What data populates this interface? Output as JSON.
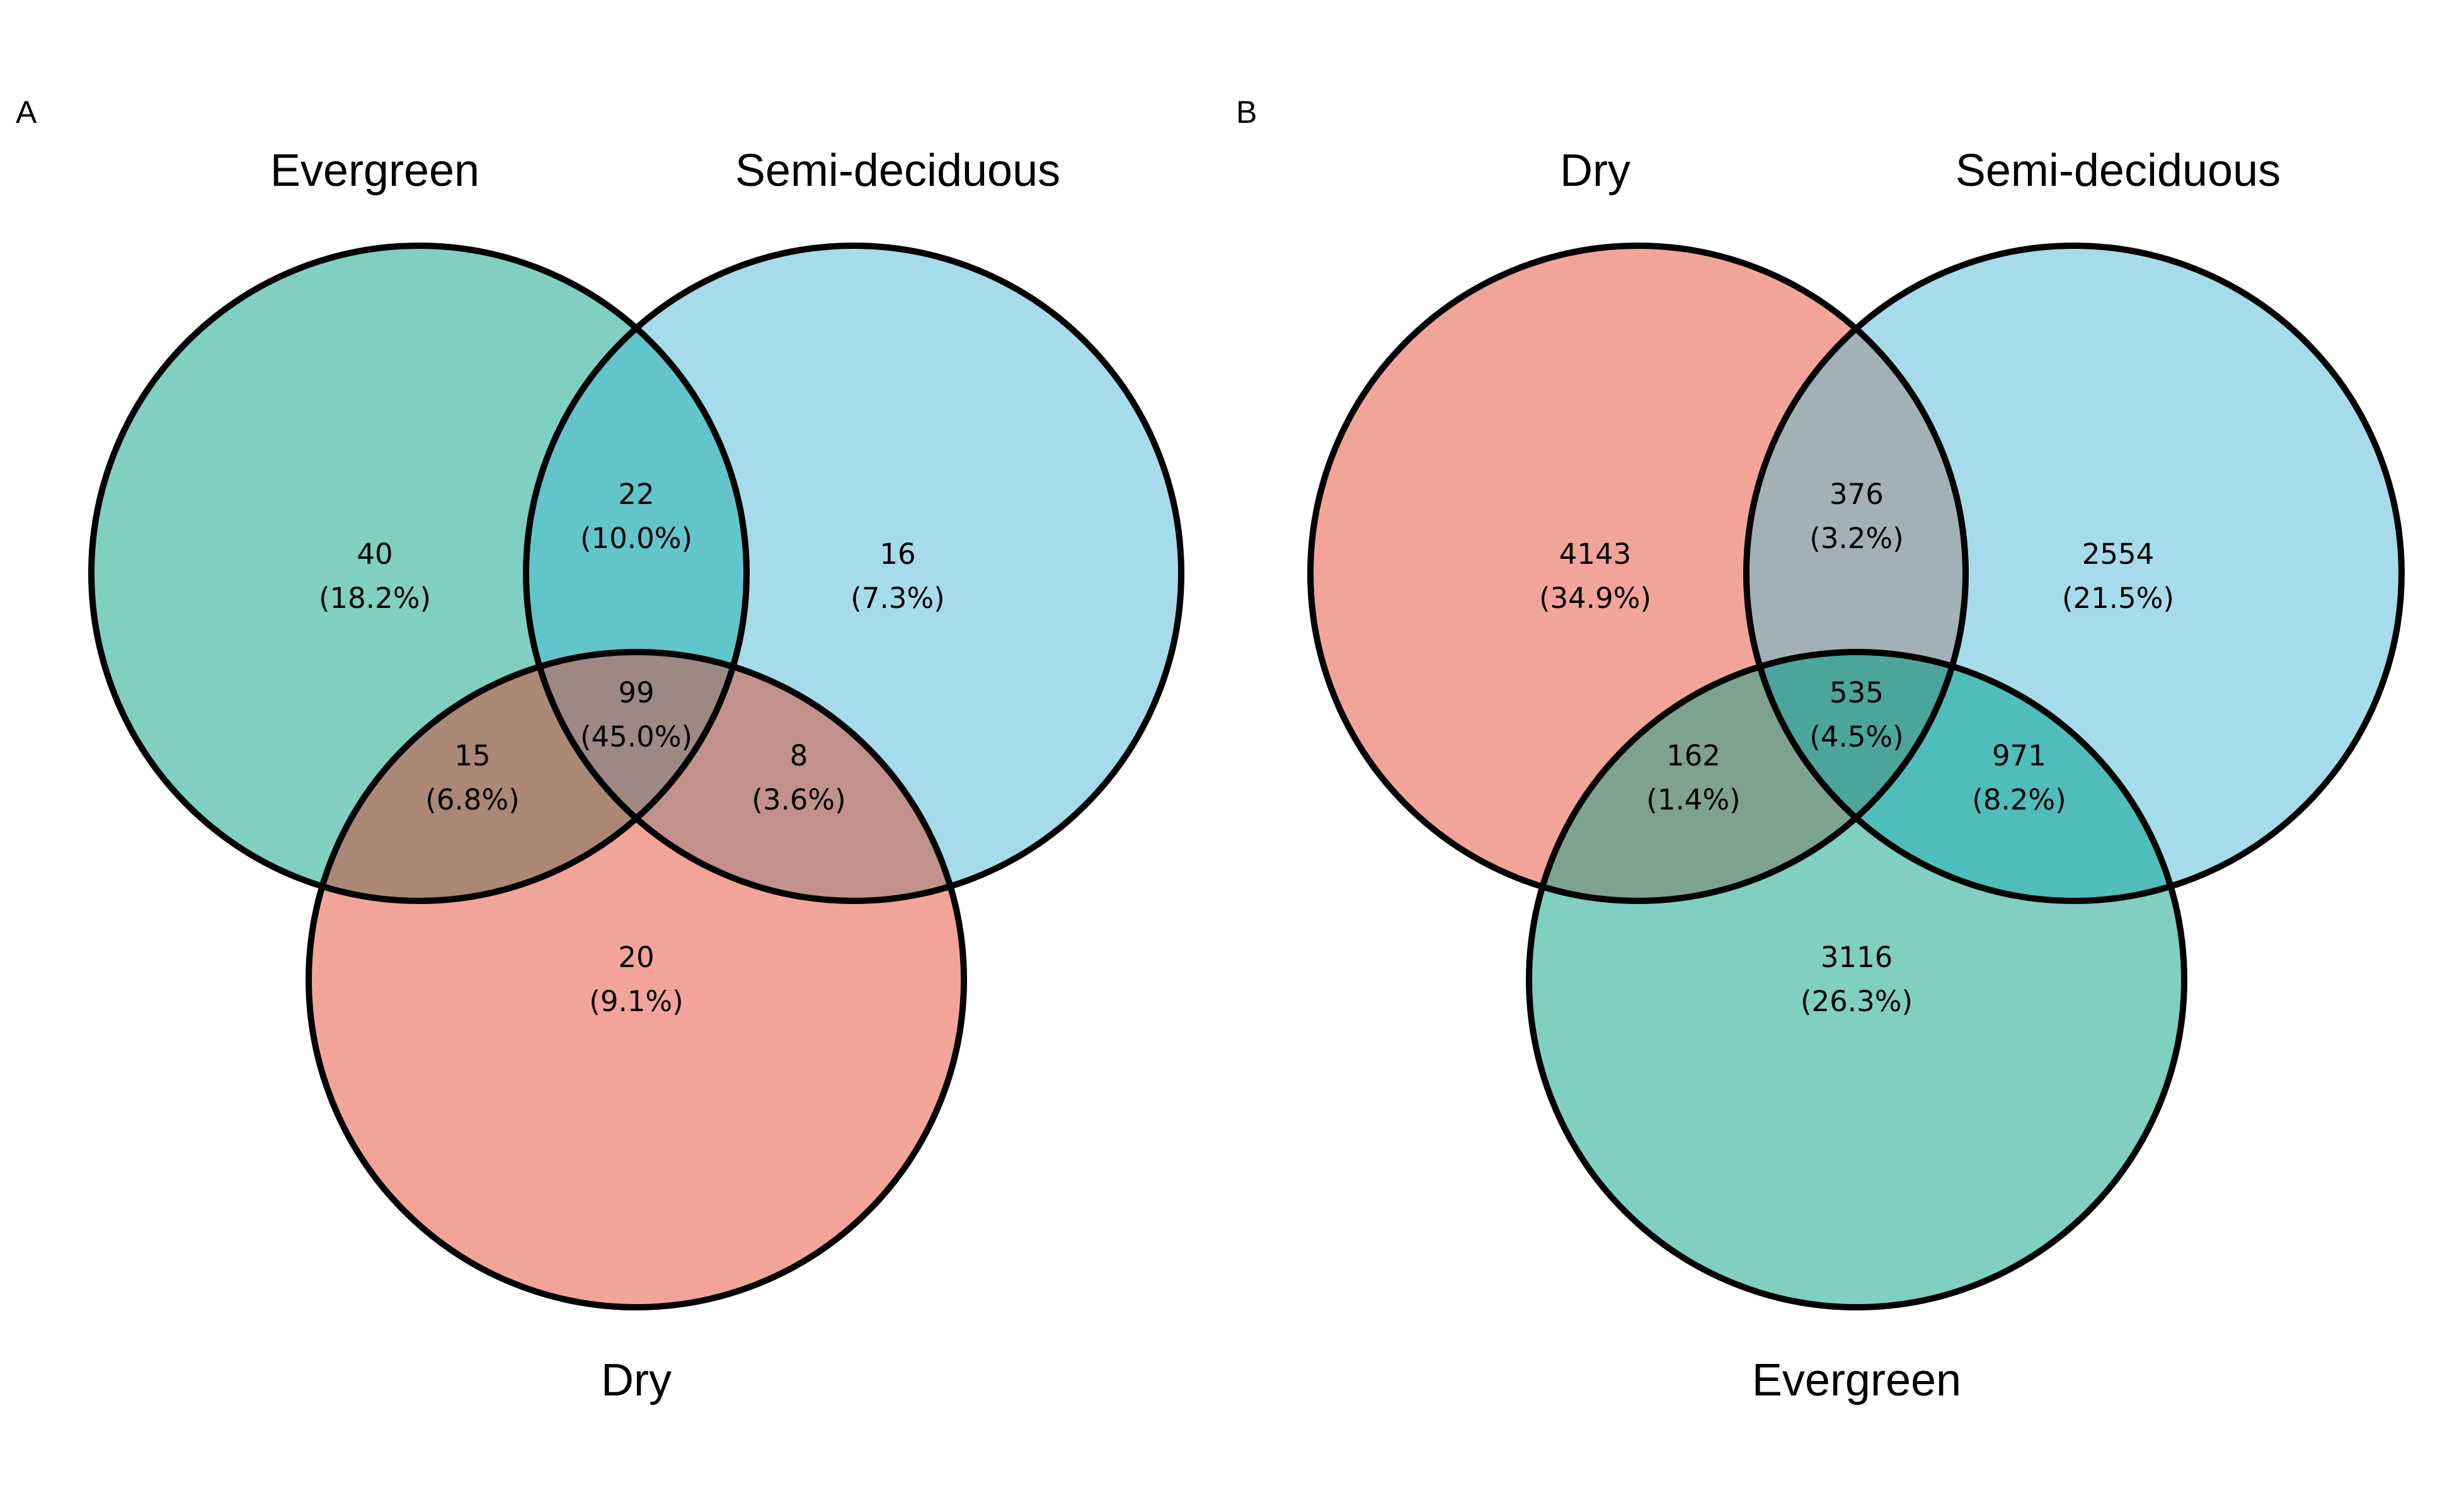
{
  "panels": [
    {
      "letter": "A",
      "sets": [
        {
          "key": "top-left",
          "label": "Evergreen",
          "color": "#7fcfc2"
        },
        {
          "key": "top-right",
          "label": "Semi-deciduous",
          "color": "#a6dce9"
        },
        {
          "key": "bottom",
          "label": "Dry",
          "color": "#f3a499"
        }
      ],
      "regions": [
        {
          "key": "top-left-only",
          "count": "40",
          "percent": "(18.2%)"
        },
        {
          "key": "top-left-and-top-right",
          "count": "22",
          "percent": "(10.0%)"
        },
        {
          "key": "top-right-only",
          "count": "16",
          "percent": "(7.3%)"
        },
        {
          "key": "all-three",
          "count": "99",
          "percent": "(45.0%)"
        },
        {
          "key": "top-left-and-bottom",
          "count": "15",
          "percent": "(6.8%)"
        },
        {
          "key": "top-right-and-bottom",
          "count": "8",
          "percent": "(3.6%)"
        },
        {
          "key": "bottom-only",
          "count": "20",
          "percent": "(9.1%)"
        }
      ],
      "overlap_colors": {
        "top-left-and-top-right": "#63c5cc",
        "top-left-and-bottom": "#ab8876",
        "top-right-and-bottom": "#c2918b",
        "all-three": "#9e8882"
      }
    },
    {
      "letter": "B",
      "sets": [
        {
          "key": "top-left",
          "label": "Dry",
          "color": "#f3a499"
        },
        {
          "key": "top-right",
          "label": "Semi-deciduous",
          "color": "#a6dce9"
        },
        {
          "key": "bottom",
          "label": "Evergreen",
          "color": "#7fcfc2"
        }
      ],
      "regions": [
        {
          "key": "top-left-only",
          "count": "4143",
          "percent": "(34.9%)"
        },
        {
          "key": "top-left-and-top-right",
          "count": "376",
          "percent": "(3.2%)"
        },
        {
          "key": "top-right-only",
          "count": "2554",
          "percent": "(21.5%)"
        },
        {
          "key": "all-three",
          "count": "535",
          "percent": "(4.5%)"
        },
        {
          "key": "top-left-and-bottom",
          "count": "162",
          "percent": "(1.4%)"
        },
        {
          "key": "top-right-and-bottom",
          "count": "971",
          "percent": "(8.2%)"
        },
        {
          "key": "bottom-only",
          "count": "3116",
          "percent": "(26.3%)"
        }
      ],
      "overlap_colors": {
        "top-left-and-top-right": "#a1b1b6",
        "top-left-and-bottom": "#7ea291",
        "top-right-and-bottom": "#4fbdb9",
        "all-three": "#4ba59b"
      }
    }
  ]
}
